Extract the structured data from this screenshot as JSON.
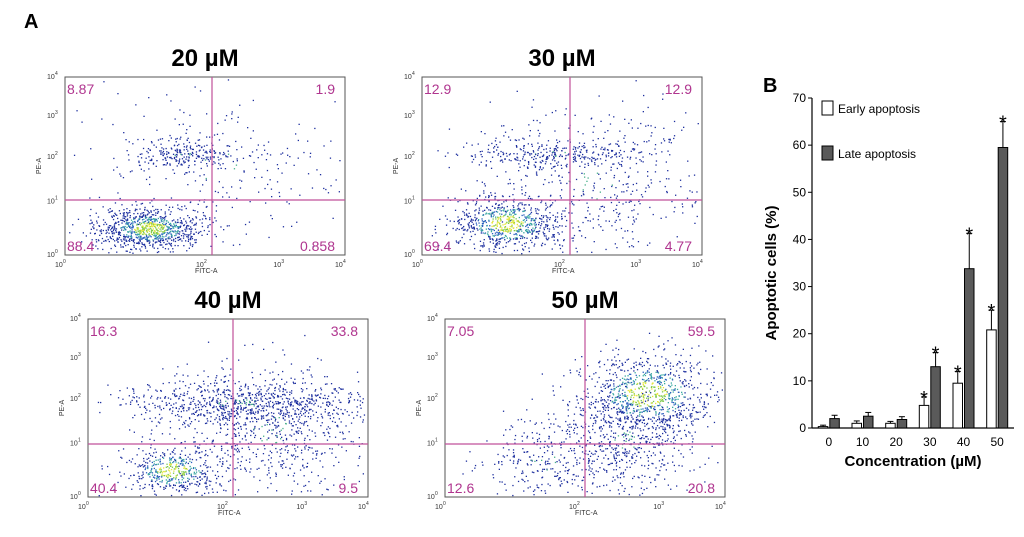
{
  "chart_data": [
    {
      "type": "scatter",
      "panel": "A",
      "title": "20 µM",
      "xlabel": "FITC-A",
      "ylabel": "PE-A",
      "axis_scale": "log",
      "x_ticks": [
        "0",
        "10 ^2",
        "10 ^3",
        "10 ^4"
      ],
      "x_ticks_base": [
        "10",
        "10",
        "10",
        "10"
      ],
      "x_ticks_exp": [
        "0",
        "2",
        "3",
        "4"
      ],
      "y_ticks_base": [
        "10",
        "10",
        "10",
        "10",
        "10"
      ],
      "y_ticks_exp": [
        "0",
        "1",
        "2",
        "3",
        "4"
      ],
      "quadrants": {
        "upper_left": "8.87",
        "upper_right": "1.9",
        "lower_left": "88.4",
        "lower_right": "0.858"
      }
    },
    {
      "type": "scatter",
      "title": "30 µM",
      "xlabel": "FITC-A",
      "ylabel": "PE-A",
      "axis_scale": "log",
      "x_ticks_base": [
        "10",
        "10",
        "10",
        "10"
      ],
      "x_ticks_exp": [
        "0",
        "2",
        "3",
        "4"
      ],
      "y_ticks_base": [
        "10",
        "10",
        "10",
        "10",
        "10"
      ],
      "y_ticks_exp": [
        "0",
        "1",
        "2",
        "3",
        "4"
      ],
      "quadrants": {
        "upper_left": "12.9",
        "upper_right": "12.9",
        "lower_left": "69.4",
        "lower_right": "4.77"
      }
    },
    {
      "type": "scatter",
      "title": "40 µM",
      "xlabel": "FITC-A",
      "ylabel": "PE-A",
      "axis_scale": "log",
      "x_ticks_base": [
        "10",
        "10",
        "10",
        "10"
      ],
      "x_ticks_exp": [
        "0",
        "2",
        "3",
        "4"
      ],
      "y_ticks_base": [
        "10",
        "10",
        "10",
        "10",
        "10"
      ],
      "y_ticks_exp": [
        "0",
        "1",
        "2",
        "3",
        "4"
      ],
      "quadrants": {
        "upper_left": "16.3",
        "upper_right": "33.8",
        "lower_left": "40.4",
        "lower_right": "9.5"
      }
    },
    {
      "type": "scatter",
      "title": "50 µM",
      "xlabel": "FITC-A",
      "ylabel": "PE-A",
      "axis_scale": "log",
      "x_ticks_base": [
        "10",
        "10",
        "10",
        "10"
      ],
      "x_ticks_exp": [
        "0",
        "2",
        "3",
        "4"
      ],
      "y_ticks_base": [
        "10",
        "10",
        "10",
        "10",
        "10"
      ],
      "y_ticks_exp": [
        "0",
        "1",
        "2",
        "3",
        "4"
      ],
      "quadrants": {
        "upper_left": "7.05",
        "upper_right": "59.5",
        "lower_left": "12.6",
        "lower_right": "20.8"
      }
    },
    {
      "type": "bar",
      "panel": "B",
      "xlabel": "Concentration (µM)",
      "ylabel": "Apoptotic cells (%)",
      "ylim": [
        0,
        70
      ],
      "yticks": [
        0,
        10,
        20,
        30,
        40,
        50,
        60,
        70
      ],
      "categories": [
        "0",
        "10",
        "20",
        "30",
        "40",
        "50"
      ],
      "legend_position": "top-left",
      "series": [
        {
          "name": "Early apoptosis",
          "color": "#ffffff",
          "values": [
            0.3,
            1.0,
            1.0,
            4.8,
            9.5,
            20.8
          ],
          "errors": [
            0.3,
            0.5,
            0.4,
            1.8,
            2.5,
            4.2
          ],
          "significant": [
            false,
            false,
            false,
            true,
            true,
            true
          ]
        },
        {
          "name": "Late apoptosis",
          "color": "#5a5a5a",
          "values": [
            2.0,
            2.5,
            1.8,
            13.0,
            33.8,
            59.5
          ],
          "errors": [
            0.7,
            0.8,
            0.6,
            3.0,
            7.5,
            5.5
          ],
          "significant": [
            false,
            false,
            false,
            true,
            true,
            true
          ]
        }
      ],
      "significance_marker": "*"
    }
  ],
  "labels": {
    "panel_a": "A",
    "panel_b": "B"
  },
  "colors": {
    "gate": "#c0509a",
    "quadrant_text": "#b0358f",
    "dot_blue": "#1d2f9e"
  }
}
